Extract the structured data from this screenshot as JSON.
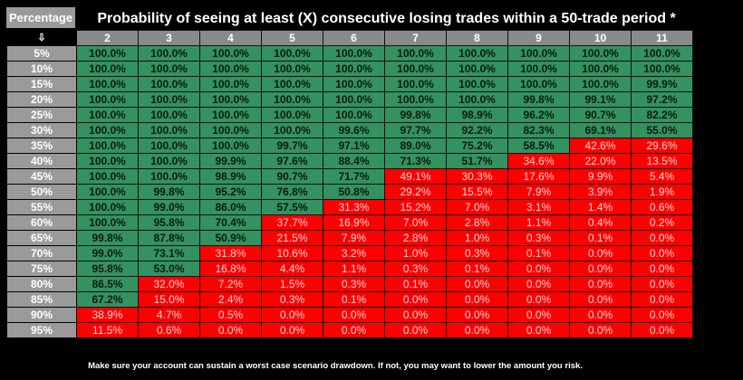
{
  "header": {
    "percentage_label": "Percentage",
    "arrow_symbol": "⇩",
    "title": "Probability of seeing at least (X) consecutive losing trades within a 50-trade period *"
  },
  "colors": {
    "high": "#33925f",
    "low": "#ff0000",
    "label_bg": "#9a9a9a",
    "header_bg": "#8a8a8a"
  },
  "color_rule": "green when value >= 50%, red otherwise",
  "table": {
    "columns": [
      "2",
      "3",
      "4",
      "5",
      "6",
      "7",
      "8",
      "9",
      "10",
      "11"
    ],
    "rows": [
      {
        "label": "5%",
        "values": [
          "100.0%",
          "100.0%",
          "100.0%",
          "100.0%",
          "100.0%",
          "100.0%",
          "100.0%",
          "100.0%",
          "100.0%",
          "100.0%"
        ]
      },
      {
        "label": "10%",
        "values": [
          "100.0%",
          "100.0%",
          "100.0%",
          "100.0%",
          "100.0%",
          "100.0%",
          "100.0%",
          "100.0%",
          "100.0%",
          "100.0%"
        ]
      },
      {
        "label": "15%",
        "values": [
          "100.0%",
          "100.0%",
          "100.0%",
          "100.0%",
          "100.0%",
          "100.0%",
          "100.0%",
          "100.0%",
          "100.0%",
          "99.9%"
        ]
      },
      {
        "label": "20%",
        "values": [
          "100.0%",
          "100.0%",
          "100.0%",
          "100.0%",
          "100.0%",
          "100.0%",
          "100.0%",
          "99.8%",
          "99.1%",
          "97.2%"
        ]
      },
      {
        "label": "25%",
        "values": [
          "100.0%",
          "100.0%",
          "100.0%",
          "100.0%",
          "100.0%",
          "99.8%",
          "98.9%",
          "96.2%",
          "90.7%",
          "82.2%"
        ]
      },
      {
        "label": "30%",
        "values": [
          "100.0%",
          "100.0%",
          "100.0%",
          "100.0%",
          "99.6%",
          "97.7%",
          "92.2%",
          "82.3%",
          "69.1%",
          "55.0%"
        ]
      },
      {
        "label": "35%",
        "values": [
          "100.0%",
          "100.0%",
          "100.0%",
          "99.7%",
          "97.1%",
          "89.0%",
          "75.2%",
          "58.5%",
          "42.6%",
          "29.6%"
        ]
      },
      {
        "label": "40%",
        "values": [
          "100.0%",
          "100.0%",
          "99.9%",
          "97.6%",
          "88.4%",
          "71.3%",
          "51.7%",
          "34.6%",
          "22.0%",
          "13.5%"
        ]
      },
      {
        "label": "45%",
        "values": [
          "100.0%",
          "100.0%",
          "98.9%",
          "90.7%",
          "71.7%",
          "49.1%",
          "30.3%",
          "17.6%",
          "9.9%",
          "5.4%"
        ]
      },
      {
        "label": "50%",
        "values": [
          "100.0%",
          "99.8%",
          "95.2%",
          "76.8%",
          "50.8%",
          "29.2%",
          "15.5%",
          "7.9%",
          "3.9%",
          "1.9%"
        ]
      },
      {
        "label": "55%",
        "values": [
          "100.0%",
          "99.0%",
          "86.0%",
          "57.5%",
          "31.3%",
          "15.2%",
          "7.0%",
          "3.1%",
          "1.4%",
          "0.6%"
        ]
      },
      {
        "label": "60%",
        "values": [
          "100.0%",
          "95.8%",
          "70.4%",
          "37.7%",
          "16.9%",
          "7.0%",
          "2.8%",
          "1.1%",
          "0.4%",
          "0.2%"
        ]
      },
      {
        "label": "65%",
        "values": [
          "99.8%",
          "87.8%",
          "50.9%",
          "21.5%",
          "7.9%",
          "2.8%",
          "1.0%",
          "0.3%",
          "0.1%",
          "0.0%"
        ]
      },
      {
        "label": "70%",
        "values": [
          "99.0%",
          "73.1%",
          "31.8%",
          "10.6%",
          "3.2%",
          "1.0%",
          "0.3%",
          "0.1%",
          "0.0%",
          "0.0%"
        ]
      },
      {
        "label": "75%",
        "values": [
          "95.8%",
          "53.0%",
          "16.8%",
          "4.4%",
          "1.1%",
          "0.3%",
          "0.1%",
          "0.0%",
          "0.0%",
          "0.0%"
        ]
      },
      {
        "label": "80%",
        "values": [
          "86.5%",
          "32.0%",
          "7.2%",
          "1.5%",
          "0.3%",
          "0.1%",
          "0.0%",
          "0.0%",
          "0.0%",
          "0.0%"
        ]
      },
      {
        "label": "85%",
        "values": [
          "67.2%",
          "15.0%",
          "2.4%",
          "0.3%",
          "0.1%",
          "0.0%",
          "0.0%",
          "0.0%",
          "0.0%",
          "0.0%"
        ]
      },
      {
        "label": "90%",
        "values": [
          "38.9%",
          "4.7%",
          "0.5%",
          "0.0%",
          "0.0%",
          "0.0%",
          "0.0%",
          "0.0%",
          "0.0%",
          "0.0%"
        ]
      },
      {
        "label": "95%",
        "values": [
          "11.5%",
          "0.6%",
          "0.0%",
          "0.0%",
          "0.0%",
          "0.0%",
          "0.0%",
          "0.0%",
          "0.0%",
          "0.0%"
        ]
      }
    ]
  },
  "footer": "Make sure your account can sustain a worst case scenario drawdown. If not, you may want to lower the amount you risk."
}
